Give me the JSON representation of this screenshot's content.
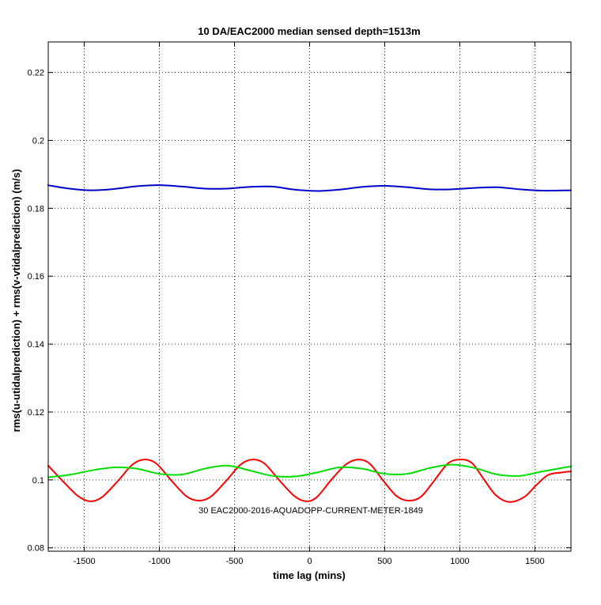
{
  "chart_data": {
    "type": "line",
    "title": "10 DA/EAC2000 median sensed depth=1513m",
    "xlabel": "time lag (mins)",
    "ylabel": "rms(u-utidalprediction) + rms(v-vtidalprediction) (m/s)",
    "xlim": [
      -1740,
      1740
    ],
    "ylim": [
      0.079,
      0.229
    ],
    "xticks": [
      -1500,
      -1000,
      -500,
      0,
      500,
      1000,
      1500
    ],
    "xtick_labels": [
      "-1500",
      "-1000",
      "-500",
      "0",
      "500",
      "1000",
      "1500"
    ],
    "yticks": [
      0.08,
      0.1,
      0.12,
      0.14,
      0.16,
      0.18,
      0.2,
      0.22
    ],
    "ytick_labels": [
      "0.08",
      "0.1",
      "0.12",
      "0.14",
      "0.16",
      "0.18",
      "0.2",
      "0.22"
    ],
    "grid": true,
    "grid_style": "dotted",
    "annotation": "30 EAC2000-2016-AQUADOPP-CURRENT-METER-1849",
    "series": [
      {
        "color": "#0000cc",
        "x": [
          -1740,
          -1600,
          -1450,
          -1300,
          -1150,
          -1000,
          -850,
          -700,
          -550,
          -400,
          -250,
          -100,
          50,
          200,
          350,
          500,
          650,
          800,
          950,
          1100,
          1250,
          1400,
          1550,
          1740
        ],
        "y": [
          0.1868,
          0.1858,
          0.1853,
          0.1857,
          0.1865,
          0.1868,
          0.1864,
          0.1858,
          0.1858,
          0.1863,
          0.1864,
          0.1855,
          0.1851,
          0.1855,
          0.1863,
          0.1866,
          0.1862,
          0.1856,
          0.1856,
          0.186,
          0.1862,
          0.1856,
          0.1852,
          0.1853
        ]
      },
      {
        "color": "#ff0000",
        "x": [
          -1740,
          -1640,
          -1540,
          -1460,
          -1380,
          -1280,
          -1180,
          -1100,
          -1020,
          -920,
          -820,
          -740,
          -660,
          -560,
          -460,
          -380,
          -300,
          -200,
          -100,
          -20,
          50,
          140,
          240,
          320,
          400,
          490,
          580,
          660,
          740,
          830,
          920,
          1000,
          1080,
          1160,
          1240,
          1330,
          1430,
          1510,
          1590,
          1680,
          1740
        ],
        "y": [
          0.1042,
          0.0995,
          0.0952,
          0.0937,
          0.095,
          0.0995,
          0.1045,
          0.106,
          0.1048,
          0.0998,
          0.0952,
          0.0939,
          0.095,
          0.0995,
          0.1045,
          0.106,
          0.1048,
          0.0998,
          0.0952,
          0.0937,
          0.095,
          0.0998,
          0.1045,
          0.106,
          0.1048,
          0.0998,
          0.0952,
          0.0939,
          0.095,
          0.0998,
          0.1048,
          0.106,
          0.105,
          0.1002,
          0.0955,
          0.0935,
          0.095,
          0.0985,
          0.1015,
          0.1022,
          0.1025
        ]
      },
      {
        "color": "#00dd00",
        "x": [
          -1740,
          -1600,
          -1450,
          -1300,
          -1150,
          -1000,
          -850,
          -700,
          -550,
          -400,
          -250,
          -100,
          50,
          200,
          350,
          500,
          650,
          800,
          950,
          1100,
          1250,
          1400,
          1550,
          1740
        ],
        "y": [
          0.1008,
          0.1015,
          0.1028,
          0.1037,
          0.1033,
          0.1018,
          0.1016,
          0.1033,
          0.1042,
          0.1028,
          0.1012,
          0.101,
          0.1022,
          0.1037,
          0.1033,
          0.1018,
          0.1018,
          0.1035,
          0.1045,
          0.1035,
          0.1016,
          0.1012,
          0.1025,
          0.104
        ]
      }
    ]
  }
}
